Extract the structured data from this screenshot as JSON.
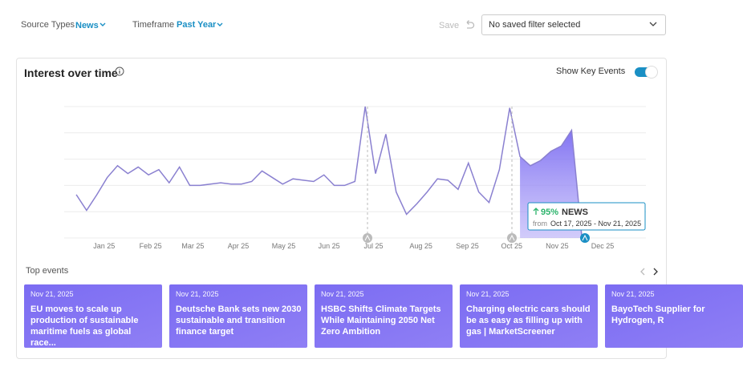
{
  "filters": {
    "source_label": "Source Types",
    "source_value": "News",
    "timeframe_label": "Timeframe",
    "timeframe_value": "Past Year",
    "save": "Save",
    "saved_filter": "No saved filter selected"
  },
  "panel": {
    "title": "Interest over time",
    "toggle_label": "Show Key Events"
  },
  "chart_data": {
    "type": "line",
    "color": "#8a80d0",
    "categories": [
      null,
      null,
      null,
      null,
      null,
      null,
      null,
      null,
      null,
      null,
      null,
      null,
      null,
      null,
      null,
      null,
      null,
      null,
      null,
      null,
      null,
      null,
      null,
      null,
      null,
      null,
      null,
      null,
      null,
      null,
      null,
      null,
      null,
      null,
      null,
      null,
      null,
      null,
      null,
      null,
      null,
      null,
      null,
      null,
      null,
      null,
      null,
      null,
      null,
      null
    ],
    "values": [
      33,
      21,
      33,
      46,
      55,
      49,
      54,
      48,
      52,
      42,
      54,
      40,
      40,
      41,
      42,
      41,
      41,
      43,
      51,
      46,
      41,
      45,
      44,
      43,
      48,
      40,
      40,
      43,
      100,
      49,
      79,
      35,
      18,
      26,
      35,
      45,
      44,
      37,
      57,
      35,
      27,
      52,
      99,
      62,
      55,
      59,
      66,
      70,
      82,
      0
    ],
    "xlim": [
      -1.17,
      55.2
    ],
    "xticks": [
      {
        "value": 2.7,
        "label": "Jan 25"
      },
      {
        "value": 7.2,
        "label": "Feb 25"
      },
      {
        "value": 11.3,
        "label": "Mar 25"
      },
      {
        "value": 15.7,
        "label": "Apr 25"
      },
      {
        "value": 20.1,
        "label": "May 25"
      },
      {
        "value": 24.5,
        "label": "Jun 25"
      },
      {
        "value": 28.8,
        "label": "Jul 25"
      },
      {
        "value": 33.4,
        "label": "Aug 25"
      },
      {
        "value": 37.9,
        "label": "Sep 25"
      },
      {
        "value": 42.2,
        "label": "Oct 25"
      },
      {
        "value": 46.6,
        "label": "Nov 25"
      },
      {
        "value": 51.0,
        "label": "Dec 25"
      }
    ],
    "ylim": [
      0,
      100
    ],
    "yticks": [
      0,
      20,
      40,
      60,
      80,
      100
    ],
    "grid": true,
    "highlight_from": 43,
    "highlight_to": 49,
    "tooltip": {
      "change": "95%",
      "label": "NEWS",
      "from_label": "from",
      "range": "Oct 17, 2025 - Nov 21, 2025"
    }
  },
  "top_events": {
    "title": "Top events",
    "events": [
      {
        "date": "Nov 21, 2025",
        "title": "EU moves to scale up production of sustainable maritime fuels as global race..."
      },
      {
        "date": "Nov 21, 2025",
        "title": "Deutsche Bank sets new 2030 sustainable and transition finance target"
      },
      {
        "date": "Nov 21, 2025",
        "title": "HSBC Shifts Climate Targets While Maintaining 2050 Net Zero Ambition"
      },
      {
        "date": "Nov 21, 2025",
        "title": "Charging electric cars should be as easy as filling up with gas | MarketScreener"
      },
      {
        "date": "Nov 21, 2025",
        "title": "BayoTech Supplier for Hydrogen, R"
      }
    ]
  }
}
